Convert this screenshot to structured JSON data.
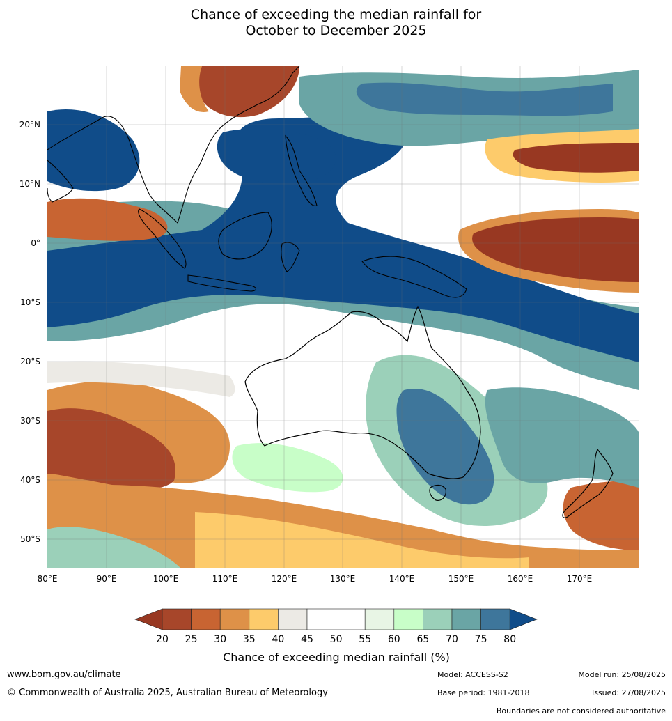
{
  "title": {
    "line1": "Chance of exceeding the median rainfall for",
    "line2": "October to December 2025"
  },
  "map": {
    "lon_range": [
      80,
      180
    ],
    "lat_range": [
      -55,
      30
    ],
    "lon_ticks": [
      "80°E",
      "90°E",
      "100°E",
      "110°E",
      "120°E",
      "130°E",
      "140°E",
      "150°E",
      "160°E",
      "170°E"
    ],
    "lat_ticks": [
      "20°N",
      "10°N",
      "0°",
      "10°S",
      "20°S",
      "30°S",
      "40°S",
      "50°S"
    ]
  },
  "colorbar": {
    "title": "Chance of exceeding median rainfall (%)",
    "ticks": [
      "20",
      "25",
      "30",
      "35",
      "40",
      "45",
      "50",
      "55",
      "60",
      "65",
      "70",
      "75",
      "80"
    ],
    "colors": [
      "#a7462a",
      "#c86432",
      "#de9148",
      "#fdcb6b",
      "#eceae5",
      "#ffffff",
      "#ffffff",
      "#e8f5e5",
      "#c8fec8",
      "#9bd0b9",
      "#6aa5a5",
      "#3e769b"
    ],
    "under_color": "#983822",
    "over_color": "#104c89"
  },
  "footer": {
    "website": "www.bom.gov.au/climate",
    "copyright": "© Commonwealth of Australia 2025, Australian Bureau of Meteorology",
    "model": "Model: ACCESS-S2",
    "base_period": "Base period: 1981-2018",
    "model_run": "Model run: 25/08/2025",
    "issued": "Issued: 27/08/2025",
    "disclaimer": "Boundaries are not considered authoritative"
  }
}
